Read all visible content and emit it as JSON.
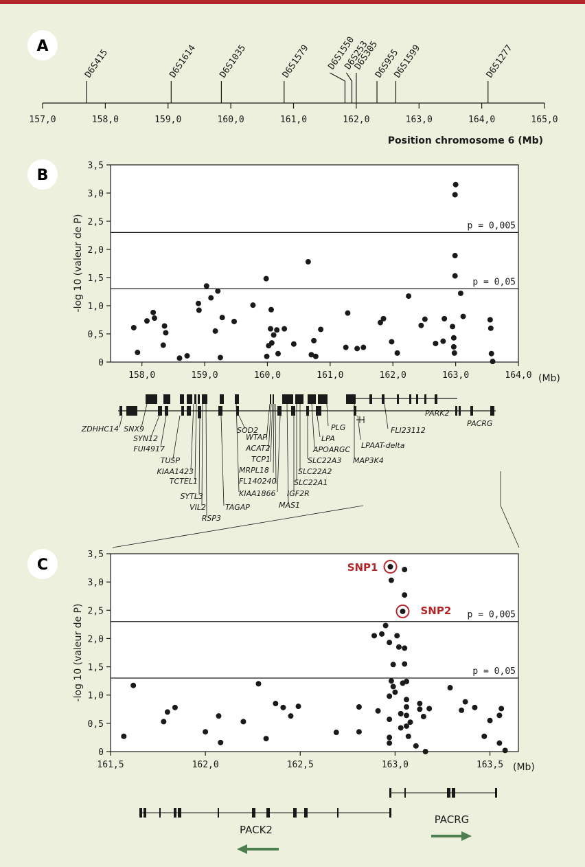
{
  "colors": {
    "top_bar": "#b5262b",
    "background": "#ecf0dc",
    "snp": "#b5262b",
    "arrow": "#4e7e4f",
    "badge": "#ffffff"
  },
  "chart_data": [
    {
      "panel": "A",
      "type": "map",
      "xlabel": "Position chromosome 6 (Mb)",
      "xlim": [
        157,
        165
      ],
      "ticks": [
        "157,0",
        "158,0",
        "159,0",
        "160,0",
        "161,0",
        "162,0",
        "163,0",
        "164,0",
        "165,0"
      ],
      "tick_values": [
        157,
        158,
        159,
        160,
        161,
        162,
        163,
        164,
        165
      ],
      "markers": [
        {
          "name": "D6S415",
          "pos": 157.7
        },
        {
          "name": "D6S1614",
          "pos": 159.05
        },
        {
          "name": "D6S1035",
          "pos": 159.85
        },
        {
          "name": "D6S1579",
          "pos": 160.85
        },
        {
          "name": "D6S1550",
          "pos": 161.82
        },
        {
          "name": "D6S253",
          "pos": 161.93
        },
        {
          "name": "D6S305",
          "pos": 162.0
        },
        {
          "name": "D6S955",
          "pos": 162.33
        },
        {
          "name": "D6S1599",
          "pos": 162.63
        },
        {
          "name": "D6S1277",
          "pos": 164.1
        }
      ]
    },
    {
      "panel": "B",
      "type": "scatter",
      "ylabel": "-log 10 (valeur de P)",
      "xunit": "(Mb)",
      "xlim": [
        157.5,
        164.0
      ],
      "ylim": [
        0,
        3.5
      ],
      "xticks": [
        "158,0",
        "159,0",
        "160,0",
        "161,0",
        "162,0",
        "163,0",
        "164,0"
      ],
      "xtick_values": [
        158,
        159,
        160,
        161,
        162,
        163,
        164
      ],
      "yticks": [
        "0",
        "0,5",
        "1,0",
        "1,5",
        "2,0",
        "2,5",
        "3,0",
        "3,5"
      ],
      "ytick_values": [
        0,
        0.5,
        1,
        1.5,
        2,
        2.5,
        3,
        3.5
      ],
      "thresholds": [
        {
          "label": "p = 0,005",
          "y": 2.3
        },
        {
          "label": "p = 0,05",
          "y": 1.3
        }
      ],
      "points": [
        [
          157.87,
          0.61
        ],
        [
          157.93,
          0.17
        ],
        [
          158.08,
          0.73
        ],
        [
          158.18,
          0.88
        ],
        [
          158.2,
          0.78
        ],
        [
          158.34,
          0.3
        ],
        [
          158.36,
          0.64
        ],
        [
          158.38,
          0.52
        ],
        [
          158.6,
          0.07
        ],
        [
          158.72,
          0.11
        ],
        [
          158.9,
          1.04
        ],
        [
          158.91,
          0.92
        ],
        [
          159.03,
          1.35
        ],
        [
          159.1,
          1.14
        ],
        [
          159.17,
          0.55
        ],
        [
          159.21,
          1.26
        ],
        [
          159.25,
          0.08
        ],
        [
          159.28,
          0.79
        ],
        [
          159.47,
          0.72
        ],
        [
          159.77,
          1.01
        ],
        [
          159.98,
          1.48
        ],
        [
          159.99,
          0.1
        ],
        [
          160.02,
          0.29
        ],
        [
          160.05,
          0.59
        ],
        [
          160.06,
          0.93
        ],
        [
          160.07,
          0.34
        ],
        [
          160.1,
          0.48
        ],
        [
          160.15,
          0.57
        ],
        [
          160.17,
          0.15
        ],
        [
          160.27,
          0.59
        ],
        [
          160.42,
          0.32
        ],
        [
          160.65,
          1.78
        ],
        [
          160.7,
          0.13
        ],
        [
          160.74,
          0.38
        ],
        [
          160.77,
          0.1
        ],
        [
          160.85,
          0.58
        ],
        [
          161.25,
          0.26
        ],
        [
          161.28,
          0.87
        ],
        [
          161.43,
          0.24
        ],
        [
          161.53,
          0.26
        ],
        [
          161.8,
          0.7
        ],
        [
          161.85,
          0.77
        ],
        [
          161.98,
          0.36
        ],
        [
          162.07,
          0.16
        ],
        [
          162.25,
          1.17
        ],
        [
          162.45,
          0.65
        ],
        [
          162.51,
          0.76
        ],
        [
          162.68,
          0.33
        ],
        [
          162.8,
          0.37
        ],
        [
          162.82,
          0.77
        ],
        [
          162.95,
          0.63
        ],
        [
          162.97,
          0.43
        ],
        [
          162.97,
          0.27
        ],
        [
          162.98,
          0.16
        ],
        [
          162.99,
          1.53
        ],
        [
          162.99,
          1.89
        ],
        [
          162.99,
          2.97
        ],
        [
          163.0,
          3.15
        ],
        [
          163.08,
          1.22
        ],
        [
          163.12,
          0.81
        ],
        [
          163.55,
          0.75
        ],
        [
          163.56,
          0.6
        ],
        [
          163.57,
          0.15
        ],
        [
          163.59,
          0.01
        ]
      ]
    },
    {
      "panel": "C",
      "type": "scatter",
      "ylabel": "-log 10 (valeur de P)",
      "xunit": "(Mb)",
      "xlim": [
        161.5,
        163.65
      ],
      "ylim": [
        0,
        3.5
      ],
      "xticks": [
        "161,5",
        "162,0",
        "162,5",
        "163,0",
        "163,5"
      ],
      "xtick_values": [
        161.5,
        162,
        162.5,
        163,
        163.5
      ],
      "yticks": [
        "0",
        "0,5",
        "1,0",
        "1,5",
        "2,0",
        "2,5",
        "3,0",
        "3,5"
      ],
      "ytick_values": [
        0,
        0.5,
        1,
        1.5,
        2,
        2.5,
        3,
        3.5
      ],
      "thresholds": [
        {
          "label": "p = 0,005",
          "y": 2.3
        },
        {
          "label": "p = 0,05",
          "y": 1.3
        }
      ],
      "highlights": [
        {
          "label": "SNP1",
          "x": 162.975,
          "y": 3.27
        },
        {
          "label": "SNP2",
          "x": 163.04,
          "y": 2.48
        }
      ],
      "points": [
        [
          161.57,
          0.27
        ],
        [
          161.62,
          1.17
        ],
        [
          161.78,
          0.53
        ],
        [
          161.8,
          0.7
        ],
        [
          161.84,
          0.78
        ],
        [
          162.0,
          0.35
        ],
        [
          162.07,
          0.63
        ],
        [
          162.08,
          0.16
        ],
        [
          162.2,
          0.53
        ],
        [
          162.28,
          1.2
        ],
        [
          162.32,
          0.23
        ],
        [
          162.37,
          0.85
        ],
        [
          162.41,
          0.78
        ],
        [
          162.45,
          0.63
        ],
        [
          162.49,
          0.8
        ],
        [
          162.69,
          0.34
        ],
        [
          162.81,
          0.79
        ],
        [
          162.81,
          0.35
        ],
        [
          162.89,
          2.05
        ],
        [
          162.91,
          0.72
        ],
        [
          162.93,
          2.08
        ],
        [
          162.95,
          2.23
        ],
        [
          162.97,
          1.93
        ],
        [
          162.97,
          0.98
        ],
        [
          162.97,
          0.57
        ],
        [
          162.97,
          0.25
        ],
        [
          162.97,
          0.15
        ],
        [
          162.98,
          1.25
        ],
        [
          162.99,
          1.15
        ],
        [
          162.99,
          1.54
        ],
        [
          162.98,
          3.03
        ],
        [
          163.0,
          1.05
        ],
        [
          163.01,
          2.05
        ],
        [
          163.02,
          1.85
        ],
        [
          163.03,
          0.67
        ],
        [
          163.03,
          0.42
        ],
        [
          163.04,
          1.21
        ],
        [
          163.05,
          1.83
        ],
        [
          163.05,
          1.55
        ],
        [
          163.05,
          2.77
        ],
        [
          163.05,
          3.22
        ],
        [
          163.06,
          1.24
        ],
        [
          163.06,
          0.92
        ],
        [
          163.06,
          0.79
        ],
        [
          163.06,
          0.64
        ],
        [
          163.06,
          0.45
        ],
        [
          163.07,
          0.27
        ],
        [
          163.08,
          0.52
        ],
        [
          163.11,
          0.1
        ],
        [
          163.13,
          0.85
        ],
        [
          163.13,
          0.75
        ],
        [
          163.15,
          0.62
        ],
        [
          163.16,
          0.0
        ],
        [
          163.18,
          0.76
        ],
        [
          163.29,
          1.13
        ],
        [
          163.35,
          0.73
        ],
        [
          163.37,
          0.88
        ],
        [
          163.42,
          0.78
        ],
        [
          163.47,
          0.27
        ],
        [
          163.5,
          0.55
        ],
        [
          163.55,
          0.64
        ],
        [
          163.55,
          0.15
        ],
        [
          163.56,
          0.76
        ],
        [
          163.58,
          0.02
        ]
      ]
    }
  ],
  "panels": {
    "a": "A",
    "b": "B",
    "c": "C"
  },
  "genes_b": [
    "ZDHHC14",
    "SNX9",
    "SYN12",
    "FUI4917",
    "TUSP",
    "KIAA1423",
    "TCTEL1",
    "SYTL3",
    "VIL2",
    "RSP3",
    "TAGAP",
    "KIAA1866",
    "FL140240",
    "MRPL18",
    "TCP1",
    "ACAT2",
    "WTAP",
    "SOD2",
    "MAS1",
    "IGF2R",
    "SLC22A1",
    "SLC22A2",
    "SLC22A3",
    "APOARGC",
    "LPA",
    "PLG",
    "MAP3K4",
    "LPAAT-delta",
    "FLI23112",
    "PARK2",
    "PACRG"
  ],
  "genes_c": {
    "pack2": "PACK2",
    "pacrg": "PACRG"
  }
}
